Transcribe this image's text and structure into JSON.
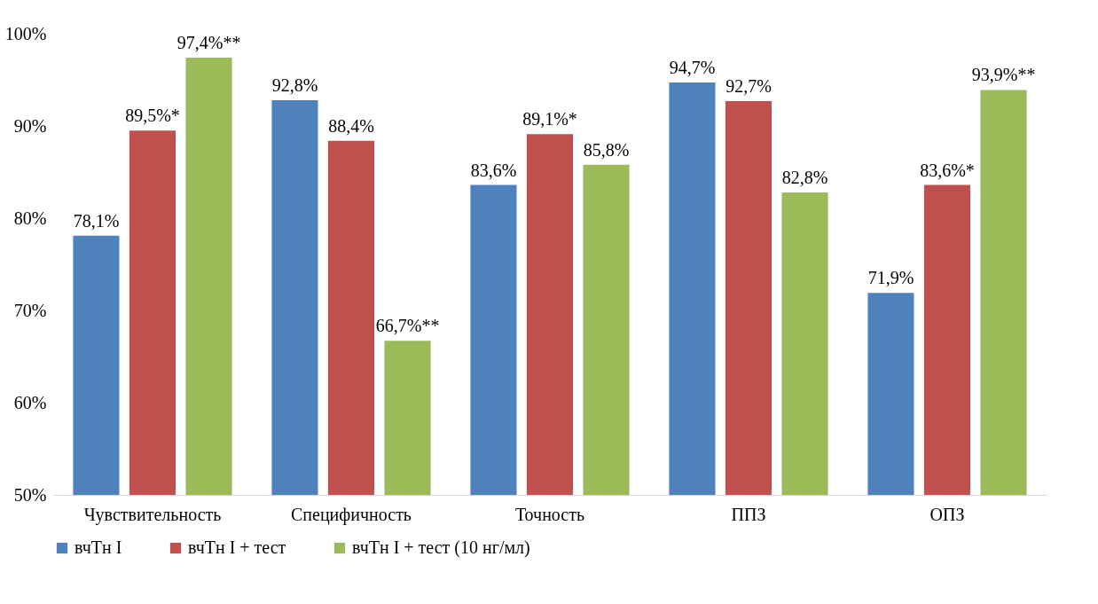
{
  "chart_data": {
    "type": "bar",
    "categories": [
      "Чувствительность",
      "Специфичность",
      "Точность",
      "ППЗ",
      "ОПЗ"
    ],
    "series": [
      {
        "name": "вчТн I",
        "color": "#4f81bd",
        "values": [
          78.1,
          92.8,
          83.6,
          94.7,
          71.9
        ],
        "value_labels": [
          "78,1%",
          "92,8%",
          "83,6%",
          "94,7%",
          "71,9%"
        ]
      },
      {
        "name": "вчТн I + тест",
        "color": "#c0504d",
        "values": [
          89.5,
          88.4,
          89.1,
          92.7,
          83.6
        ],
        "value_labels": [
          "89,5%*",
          "88,4%",
          "89,1%*",
          "92,7%",
          "83,6%*"
        ]
      },
      {
        "name": "вчТн I + тест (10 нг/мл)",
        "color": "#9bbb59",
        "values": [
          97.4,
          66.7,
          85.8,
          82.8,
          93.9
        ],
        "value_labels": [
          "97,4%**",
          "66,7%**",
          "85,8%",
          "82,8%",
          "93,9%**"
        ]
      }
    ],
    "ylim": [
      50,
      100
    ],
    "yticks": [
      {
        "value": 50,
        "label": "50%"
      },
      {
        "value": 60,
        "label": "60%"
      },
      {
        "value": 70,
        "label": "70%"
      },
      {
        "value": 80,
        "label": "80%"
      },
      {
        "value": 90,
        "label": "90%"
      },
      {
        "value": 100,
        "label": "100%"
      }
    ],
    "grid": false,
    "legend": "bottom"
  }
}
